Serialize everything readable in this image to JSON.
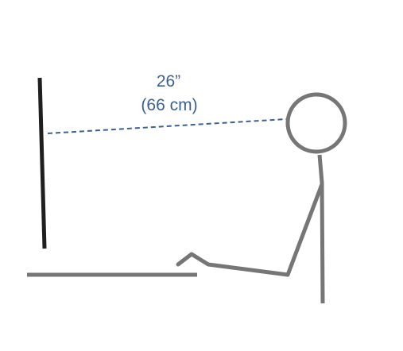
{
  "distance": {
    "inches_label": "26”",
    "cm_label": "(66 cm)"
  },
  "colors": {
    "monitor": "#1f1f1f",
    "figure": "#767676",
    "sightline": "#3e5f94",
    "label": "#3e5f94",
    "background": "#ffffff"
  }
}
